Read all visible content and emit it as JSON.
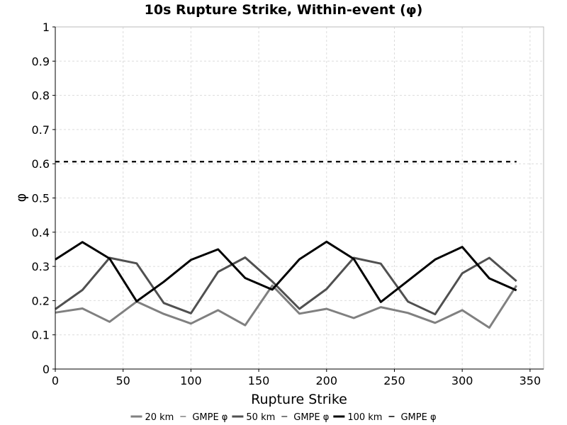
{
  "chart_data": {
    "type": "line",
    "title": "10s Rupture Strike, Within-event (φ)",
    "xlabel": "Rupture Strike",
    "ylabel": "φ",
    "xlim": [
      0,
      360
    ],
    "ylim": [
      0,
      1
    ],
    "xticks": [
      0,
      50,
      100,
      150,
      200,
      250,
      300,
      350
    ],
    "yticks": [
      0,
      0.1,
      0.2,
      0.3,
      0.4,
      0.5,
      0.6,
      0.7,
      0.8,
      0.9,
      1
    ],
    "ytick_labels": [
      "0",
      "0.1",
      "0.2",
      "0.3",
      "0.4",
      "0.5",
      "0.6",
      "0.7",
      "0.8",
      "0.9",
      "1"
    ],
    "grid": true,
    "legend_position": "bottom",
    "x": [
      0,
      20,
      40,
      60,
      80,
      100,
      120,
      140,
      160,
      180,
      200,
      220,
      240,
      260,
      280,
      300,
      320,
      340
    ],
    "series": [
      {
        "name": "20 km",
        "color": "#808080",
        "dashed": false,
        "values": [
          0.165,
          0.177,
          0.138,
          0.197,
          0.161,
          0.133,
          0.172,
          0.128,
          0.244,
          0.162,
          0.176,
          0.149,
          0.181,
          0.164,
          0.135,
          0.172,
          0.121,
          0.244
        ]
      },
      {
        "name": "GMPE φ",
        "color": "#808080",
        "dashed": true,
        "values": [
          0.606,
          0.606,
          0.606,
          0.606,
          0.606,
          0.606,
          0.606,
          0.606,
          0.606,
          0.606,
          0.606,
          0.606,
          0.606,
          0.606,
          0.606,
          0.606,
          0.606,
          0.606
        ]
      },
      {
        "name": "50 km",
        "color": "#505050",
        "dashed": false,
        "values": [
          0.175,
          0.231,
          0.325,
          0.309,
          0.193,
          0.163,
          0.284,
          0.326,
          0.256,
          0.176,
          0.234,
          0.325,
          0.308,
          0.197,
          0.16,
          0.28,
          0.325,
          0.257
        ]
      },
      {
        "name": "GMPE φ",
        "color": "#505050",
        "dashed": true,
        "values": [
          0.606,
          0.606,
          0.606,
          0.606,
          0.606,
          0.606,
          0.606,
          0.606,
          0.606,
          0.606,
          0.606,
          0.606,
          0.606,
          0.606,
          0.606,
          0.606,
          0.606,
          0.606
        ]
      },
      {
        "name": "100 km",
        "color": "#000000",
        "dashed": false,
        "values": [
          0.32,
          0.371,
          0.323,
          0.198,
          0.255,
          0.319,
          0.35,
          0.266,
          0.232,
          0.321,
          0.372,
          0.322,
          0.196,
          0.258,
          0.32,
          0.357,
          0.265,
          0.23
        ]
      },
      {
        "name": "GMPE φ",
        "color": "#000000",
        "dashed": true,
        "values": [
          0.606,
          0.606,
          0.606,
          0.606,
          0.606,
          0.606,
          0.606,
          0.606,
          0.606,
          0.606,
          0.606,
          0.606,
          0.606,
          0.606,
          0.606,
          0.606,
          0.606,
          0.606
        ]
      }
    ]
  }
}
